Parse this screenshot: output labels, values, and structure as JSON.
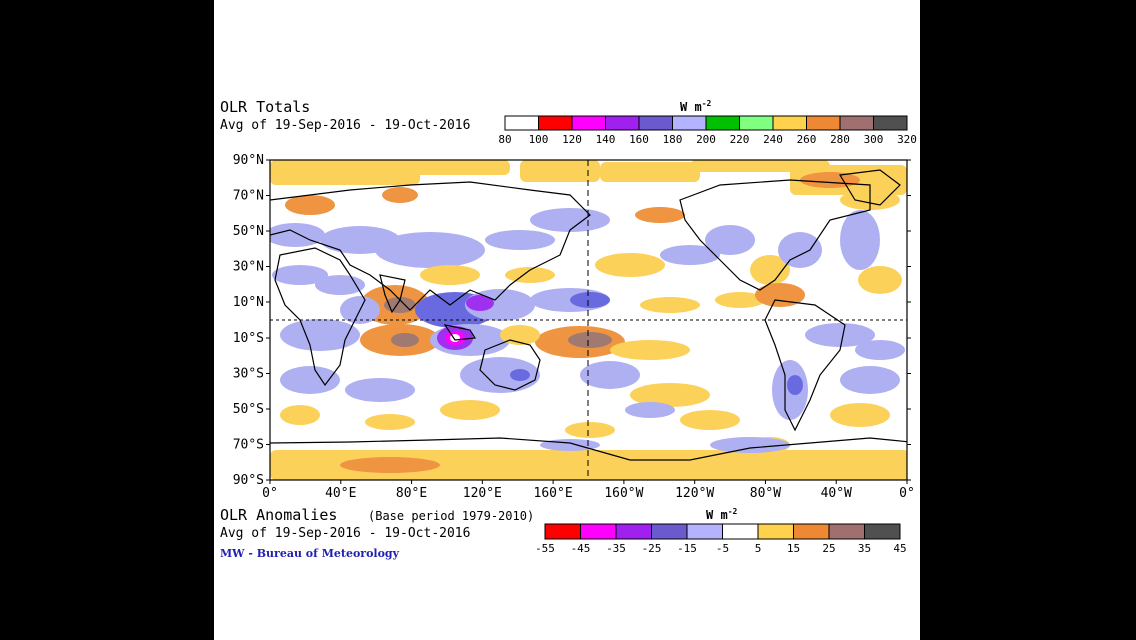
{
  "totals": {
    "title": "OLR Totals",
    "period": "Avg of 19-Sep-2016 - 19-Oct-2016",
    "units": "W m",
    "units_exp": "-2",
    "scale_labels": [
      "80",
      "100",
      "120",
      "140",
      "160",
      "180",
      "200",
      "220",
      "240",
      "260",
      "280",
      "300",
      "320"
    ],
    "colors": [
      "#ffffff",
      "#ff0000",
      "#ff00ff",
      "#a020f0",
      "#6a5acd",
      "#b3b3ff",
      "#00c000",
      "#80ff80",
      "#ffd24d",
      "#ee8833",
      "#a07070",
      "#505050"
    ]
  },
  "map": {
    "lat_labels": [
      "90°N",
      "70°N",
      "50°N",
      "30°N",
      "10°N",
      "10°S",
      "30°S",
      "50°S",
      "70°S",
      "90°S"
    ],
    "lon_labels": [
      "0°",
      "40°E",
      "80°E",
      "120°E",
      "160°E",
      "160°W",
      "120°W",
      "80°W",
      "40°W",
      "0°"
    ]
  },
  "anomalies": {
    "title": "OLR Anomalies",
    "base": "(Base period 1979-2010)",
    "period": "Avg of 19-Sep-2016 - 19-Oct-2016",
    "units": "W m",
    "units_exp": "-2",
    "scale_labels": [
      "-55",
      "-45",
      "-35",
      "-25",
      "-15",
      "-5",
      "5",
      "15",
      "25",
      "35",
      "45"
    ],
    "colors": [
      "#ff0000",
      "#ff00ff",
      "#a020f0",
      "#6a5acd",
      "#b3b3ff",
      "#ffffff",
      "#ffd24d",
      "#ee8833",
      "#a07070",
      "#505050"
    ]
  },
  "credit": "MW - Bureau of Meteorology"
}
